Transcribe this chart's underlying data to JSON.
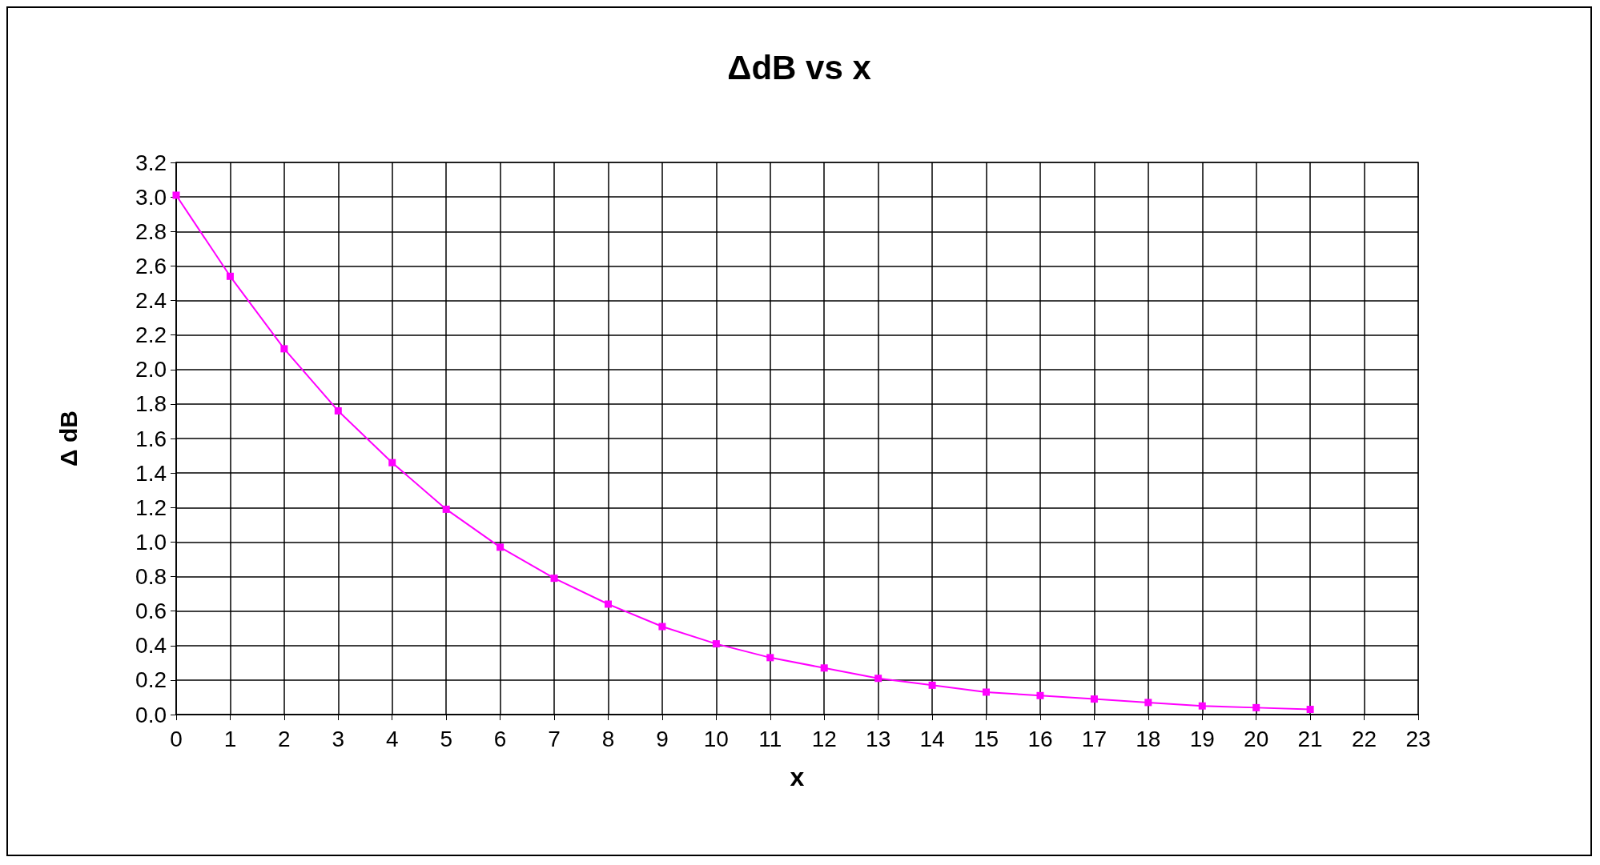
{
  "chart_data": {
    "type": "line",
    "title": "ΔdB vs x",
    "xlabel": "x",
    "ylabel": "Δ dB",
    "x": [
      0,
      1,
      2,
      3,
      4,
      5,
      6,
      7,
      8,
      9,
      10,
      11,
      12,
      13,
      14,
      15,
      16,
      17,
      18,
      19,
      20,
      21
    ],
    "series": [
      {
        "color": "#ff00ff",
        "values": [
          3.01,
          2.54,
          2.12,
          1.76,
          1.46,
          1.19,
          0.97,
          0.79,
          0.64,
          0.51,
          0.41,
          0.33,
          0.27,
          0.21,
          0.17,
          0.13,
          0.11,
          0.09,
          0.07,
          0.05,
          0.04,
          0.03
        ]
      }
    ],
    "xlim": [
      0,
      23
    ],
    "xticks": [
      0,
      1,
      2,
      3,
      4,
      5,
      6,
      7,
      8,
      9,
      10,
      11,
      12,
      13,
      14,
      15,
      16,
      17,
      18,
      19,
      20,
      21,
      22,
      23
    ],
    "ylim": [
      0,
      3.2
    ],
    "yticks": [
      {
        "value": 0,
        "label": "0.0"
      },
      {
        "value": 0.2,
        "label": "0.2"
      },
      {
        "value": 0.4,
        "label": "0.4"
      },
      {
        "value": 0.6,
        "label": "0.6"
      },
      {
        "value": 0.8,
        "label": "0.8"
      },
      {
        "value": 1,
        "label": "1.0"
      },
      {
        "value": 1.2,
        "label": "1.2"
      },
      {
        "value": 1.4,
        "label": "1.4"
      },
      {
        "value": 1.6,
        "label": "1.6"
      },
      {
        "value": 1.8,
        "label": "1.8"
      },
      {
        "value": 2,
        "label": "2.0"
      },
      {
        "value": 2.2,
        "label": "2.2"
      },
      {
        "value": 2.4,
        "label": "2.4"
      },
      {
        "value": 2.6,
        "label": "2.6"
      },
      {
        "value": 2.8,
        "label": "2.8"
      },
      {
        "value": 3,
        "label": "3.0"
      },
      {
        "value": 3.2,
        "label": "3.2"
      }
    ],
    "grid": true,
    "marker": "square",
    "line_style": "solid"
  }
}
